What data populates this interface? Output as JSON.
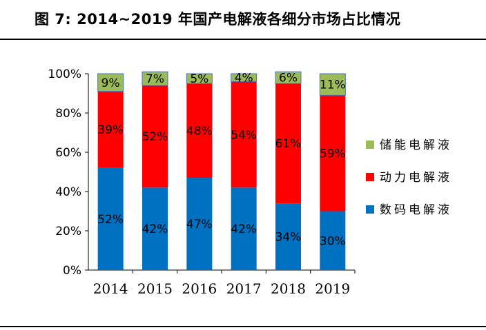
{
  "figure": {
    "title": "图 7:  2014~2019 年国产电解液各细分市场占比情况"
  },
  "chart_data": {
    "type": "bar",
    "stacked": true,
    "categories": [
      "2014",
      "2015",
      "2016",
      "2017",
      "2018",
      "2019"
    ],
    "y_ticks": [
      "0%",
      "20%",
      "40%",
      "60%",
      "80%",
      "100%"
    ],
    "ylim": [
      0,
      100
    ],
    "grid": false,
    "legend_position": "right",
    "series": [
      {
        "name": "数码电解液",
        "color": "#0070C0",
        "values": [
          52,
          42,
          47,
          42,
          34,
          30
        ],
        "labels": [
          "52%",
          "42%",
          "47%",
          "42%",
          "34%",
          "30%"
        ]
      },
      {
        "name": "动力电解液",
        "color": "#FF0000",
        "values": [
          39,
          52,
          48,
          54,
          61,
          59
        ],
        "labels": [
          "39%",
          "52%",
          "48%",
          "54%",
          "61%",
          "59%"
        ]
      },
      {
        "name": "储能电解液",
        "color": "#9BBB59",
        "values": [
          9,
          7,
          5,
          4,
          6,
          11
        ],
        "labels": [
          "9%",
          "7%",
          "5%",
          "4%",
          "6%",
          "11%"
        ]
      }
    ],
    "legend_order": [
      2,
      1,
      0
    ]
  }
}
